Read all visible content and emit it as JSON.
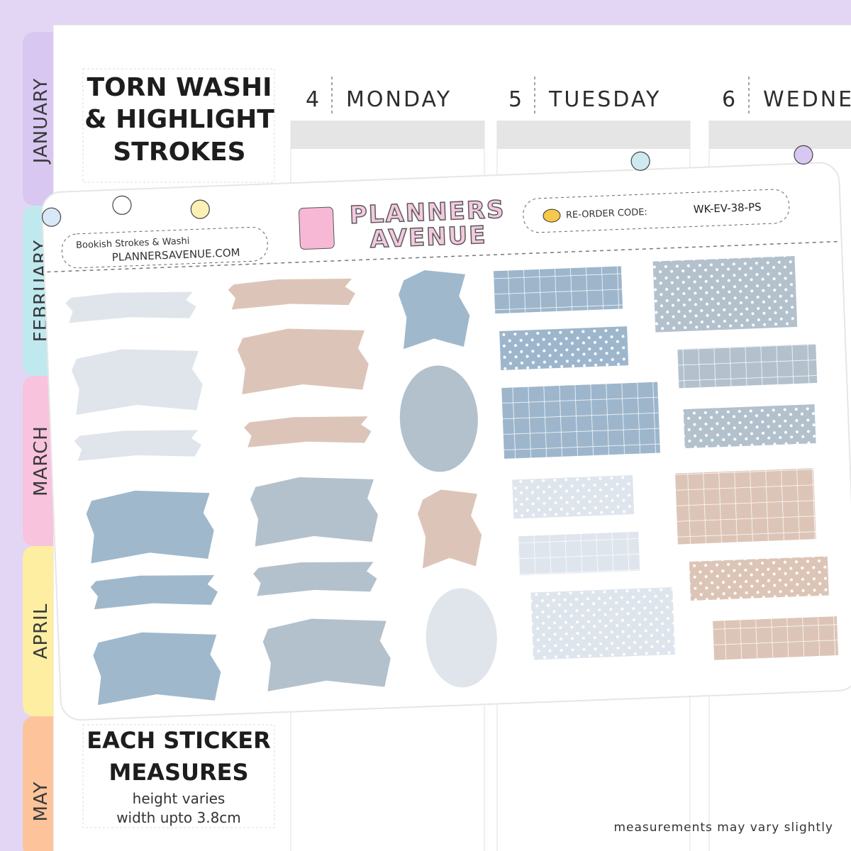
{
  "tabs": [
    "JANUARY",
    "FEBRUARY",
    "MARCH",
    "APRIL",
    "MAY"
  ],
  "title": {
    "lines": [
      "TORN WASHI",
      "& HIGHLIGHT",
      "STROKES"
    ]
  },
  "days": [
    {
      "number": "4",
      "name": "MONDAY"
    },
    {
      "number": "5",
      "name": "TUESDAY"
    },
    {
      "number": "6",
      "name": "WEDNE"
    }
  ],
  "sheet": {
    "name": "Bookish Strokes & Washi",
    "website": "PLANNERSAVENUE.COM",
    "brand": [
      "PLANNERS",
      "AVENUE"
    ],
    "reorder_label": "RE-ORDER CODE:",
    "reorder_code": "WK-EV-38-PS"
  },
  "measure": {
    "lines": [
      "EACH STICKER",
      "MEASURES"
    ],
    "details": [
      "height varies",
      "width upto 3.8cm"
    ]
  },
  "footnote": "measurements may vary slightly"
}
